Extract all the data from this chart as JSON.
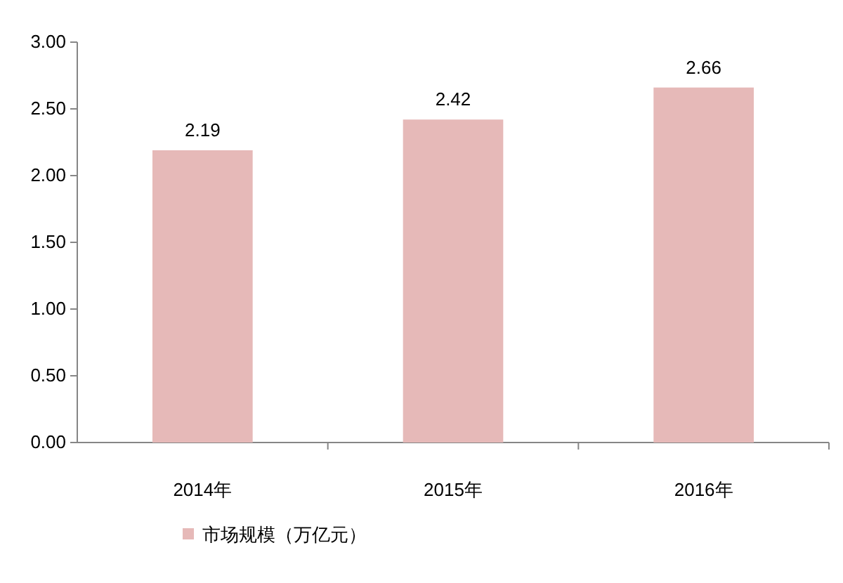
{
  "chart_data": {
    "type": "bar",
    "categories": [
      "2014年",
      "2015年",
      "2016年"
    ],
    "series": [
      {
        "name": "市场规模（万亿元）",
        "color": "#e6b9b8",
        "values": [
          2.19,
          2.42,
          2.66
        ]
      }
    ],
    "ylim": [
      0,
      3
    ],
    "yticks": [
      {
        "value": 0,
        "label": "0.00"
      },
      {
        "value": 0.5,
        "label": "0.50"
      },
      {
        "value": 1,
        "label": "1.00"
      },
      {
        "value": 1.5,
        "label": "1.50"
      },
      {
        "value": 2,
        "label": "2.00"
      },
      {
        "value": 2.5,
        "label": "2.50"
      },
      {
        "value": 3,
        "label": "3.00"
      }
    ],
    "data_labels": true,
    "legend": "bottom left",
    "grid": false
  }
}
